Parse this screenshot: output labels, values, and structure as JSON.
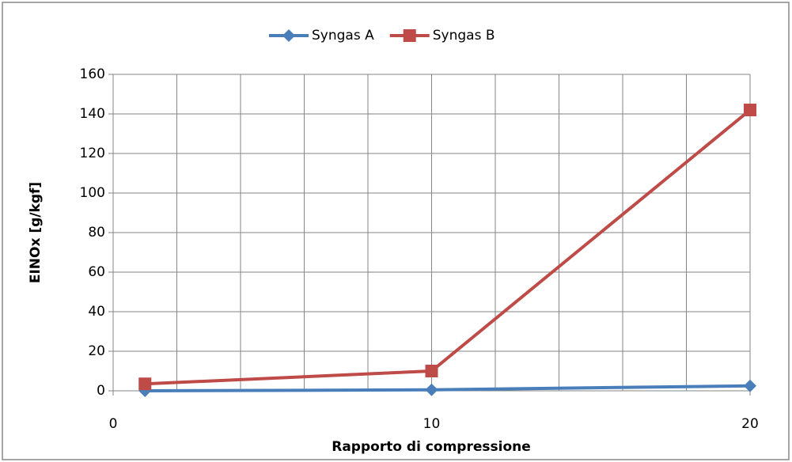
{
  "chart_data": {
    "type": "line",
    "x_label": "Rapporto di compressione",
    "y_label": "EINOx [g/kgf]",
    "x": [
      1,
      10,
      20
    ],
    "series": [
      {
        "name": "Syngas A",
        "color": "#4a7ebb",
        "marker": "diamond",
        "values": [
          0,
          0.5,
          2.5
        ]
      },
      {
        "name": "Syngas B",
        "color": "#be4b48",
        "marker": "square",
        "values": [
          3.5,
          10,
          142
        ]
      }
    ],
    "xlim": [
      0,
      20
    ],
    "xticks": [
      0,
      10,
      20
    ],
    "x_minor_ticks": [
      2,
      4,
      6,
      8,
      12,
      14,
      16,
      18
    ],
    "ylim": [
      0,
      160
    ],
    "yticks": [
      0,
      20,
      40,
      60,
      80,
      100,
      120,
      140,
      160
    ],
    "grid": true,
    "legend": "top"
  }
}
